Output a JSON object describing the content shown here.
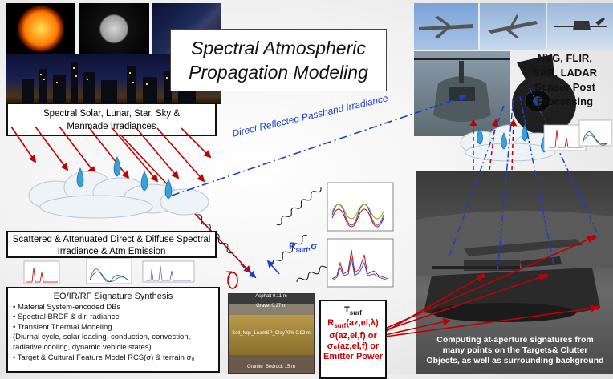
{
  "title": {
    "line1": "Spectral Atmospheric",
    "line2": "Propagation Modeling"
  },
  "irradiance_label": {
    "line1": "Spectral Solar, Lunar, Star, Sky &",
    "line2": "Manmade Irradiances"
  },
  "reflected_label": "Direct Reflected Passband Irradiance",
  "scatter_label": {
    "line1": "Scattered & Attenuated Direct & Diffuse Spectral",
    "line2": "Irradiance & Atm Emission"
  },
  "sensor_label": {
    "line1": "NVG, FLIR,",
    "line2": "SAR, LADAR",
    "line3": "Sensor Post",
    "line4": "Processing"
  },
  "signature_box": {
    "heading": "EO/IR/RF Signature Synthesis",
    "items": [
      "• Material System-encoded DBs",
      "• Spectral BRDF & dir. radiance",
      "• Transient Thermal Modeling",
      "(Diurnal cycle, solar loading, conduction, convection,",
      "radiative cooling, dynamic vehicle states)",
      "• Target & Cultural Feature Model RCS(σ) & terrain σ₀"
    ]
  },
  "rsurf_label": {
    "main": "R",
    "sub": "surf",
    "tail": ",σ"
  },
  "t_label": "T",
  "tsurf_box": {
    "line1": "T",
    "line1_sub": "surf",
    "line2": "R",
    "line2_sub": "surf",
    "line2_tail": "(az,el,λ)",
    "line3": "σ(az,el,f) or",
    "line4": "σ₀(az,el,f) or",
    "line5": "Emitter Power"
  },
  "soil_layers": [
    "Asphalt  0.11 m",
    "Gravel  0.27 m",
    "Soil_Nqs_LoamSP_Clay70%  0.92 m",
    "Granite_Bedrock  15 m"
  ],
  "compute_label": {
    "line1": "Computing at-aperture signatures from",
    "line2": "many points on the Targets& Clutter",
    "line3": "Objects, as well as surrounding background"
  },
  "colors": {
    "red": "#c00000",
    "blue": "#1a3fd0",
    "drop": "#3aa0d8"
  }
}
